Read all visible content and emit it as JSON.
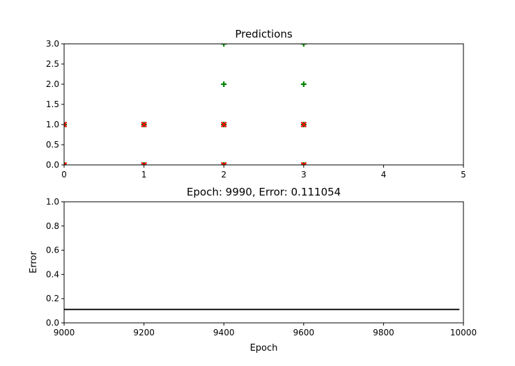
{
  "chart_data": [
    {
      "type": "scatter",
      "title": "Predictions",
      "xlabel": "",
      "ylabel": "",
      "xlim": [
        0,
        5
      ],
      "ylim": [
        0,
        3
      ],
      "xticks": [
        "0",
        "1",
        "2",
        "3",
        "4",
        "5"
      ],
      "yticks": [
        "0.0",
        "0.5",
        "1.0",
        "1.5",
        "2.0",
        "2.5",
        "3.0"
      ],
      "grid": false,
      "series": [
        {
          "marker": "plus",
          "color": "#008000",
          "points": [
            [
              0,
              0
            ],
            [
              0,
              1
            ],
            [
              1,
              0
            ],
            [
              1,
              1
            ],
            [
              2,
              0
            ],
            [
              2,
              1
            ],
            [
              2,
              2
            ],
            [
              2,
              3
            ],
            [
              3,
              0
            ],
            [
              3,
              1
            ],
            [
              3,
              2
            ],
            [
              3,
              3
            ]
          ]
        },
        {
          "marker": "x",
          "color": "#ff0000",
          "points": [
            [
              0,
              0
            ],
            [
              0,
              1
            ],
            [
              1,
              0
            ],
            [
              1,
              1
            ],
            [
              2,
              0
            ],
            [
              2,
              1
            ],
            [
              3,
              0
            ],
            [
              3,
              1
            ]
          ]
        }
      ]
    },
    {
      "type": "line",
      "title": "Epoch: 9990, Error: 0.111054",
      "xlabel": "Epoch",
      "ylabel": "Error",
      "xlim": [
        9000,
        10000
      ],
      "ylim": [
        0,
        1
      ],
      "xticks": [
        "9000",
        "9200",
        "9400",
        "9600",
        "9800",
        "10000"
      ],
      "yticks": [
        "0.0",
        "0.2",
        "0.4",
        "0.6",
        "0.8",
        "1.0"
      ],
      "grid": false,
      "series": [
        {
          "color": "#000000",
          "x": [
            9000,
            9990
          ],
          "y": [
            0.111054,
            0.111054
          ]
        }
      ]
    }
  ]
}
